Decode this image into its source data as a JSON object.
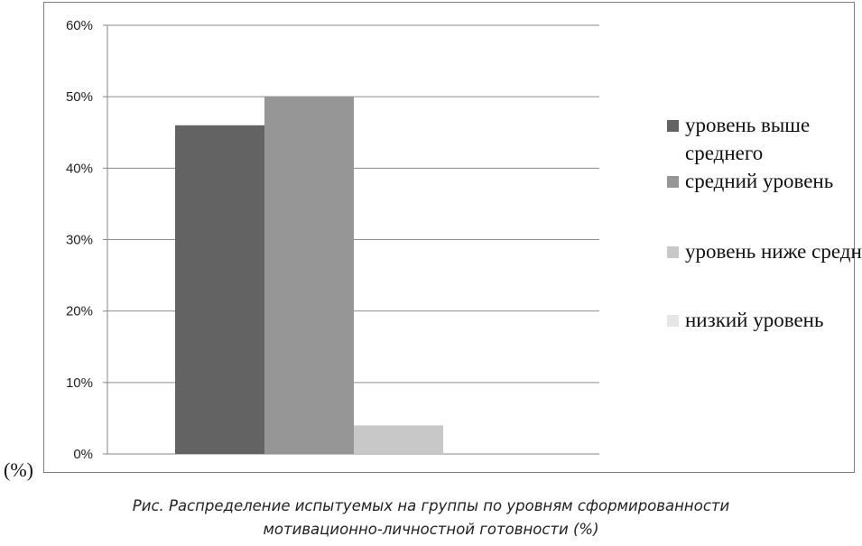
{
  "chart_data": {
    "type": "bar",
    "title": "",
    "xlabel": "",
    "ylabel": "",
    "ylim": [
      0,
      60
    ],
    "yticks": [
      "0%",
      "10%",
      "20%",
      "30%",
      "40%",
      "50%",
      "60%"
    ],
    "grid": true,
    "legend_position": "right",
    "categories": [
      ""
    ],
    "series": [
      {
        "name": "уровень выше среднего",
        "values": [
          46
        ],
        "color": "#636363"
      },
      {
        "name": "средний уровень",
        "values": [
          50
        ],
        "color": "#969696"
      },
      {
        "name": "уровень ниже среднего",
        "values": [
          4
        ],
        "color": "#c8c8c8"
      },
      {
        "name": "низкий уровень",
        "values": [
          0
        ],
        "color": "#e6e6e6"
      }
    ]
  },
  "unit_label": "(%)",
  "caption": {
    "line1": "Рис. Распределение испытуемых на группы по уровням сформированности",
    "line2": "мотивационно-личностной готовности (%)"
  }
}
